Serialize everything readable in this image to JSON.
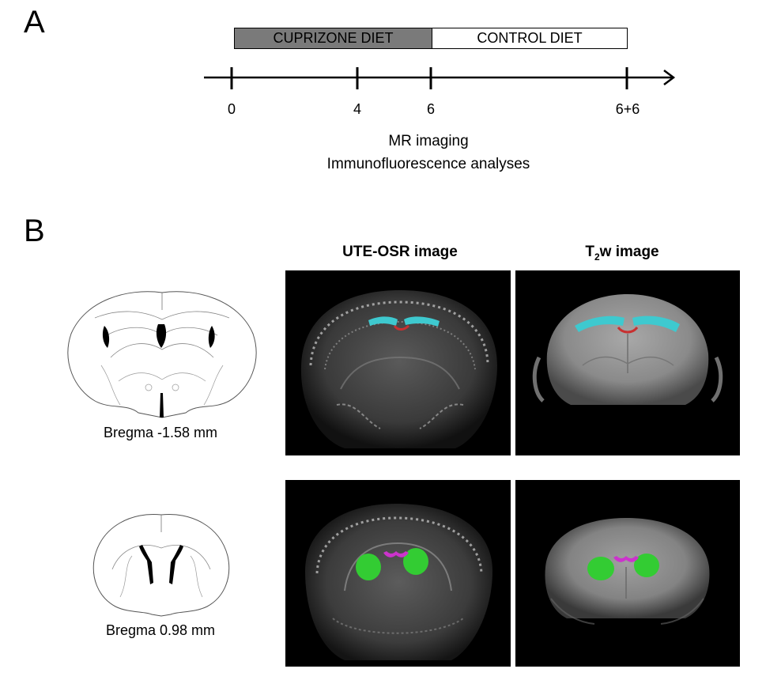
{
  "panel_a": {
    "letter": "A",
    "bars": [
      {
        "label": "CUPRIZONE DIET",
        "fill": "#7a7a7a"
      },
      {
        "label": "CONTROL DIET",
        "fill": "#ffffff"
      }
    ],
    "ticks": [
      "0",
      "4",
      "6",
      "6+6"
    ],
    "annotation_line1": "MR imaging",
    "annotation_line2": "Immunofluorescence analyses"
  },
  "panel_b": {
    "letter": "B",
    "col1_title": "UTE-OSR image",
    "col2_title_main": "T",
    "col2_title_sub": "2",
    "col2_title_rest": "w image",
    "rows": [
      {
        "caption": "Bregma -1.58 mm"
      },
      {
        "caption": "Bregma 0.98 mm"
      }
    ]
  },
  "colors": {
    "roi_corpus_callosum_lateral": "#3ec9cf",
    "roi_corpus_callosum_medial": "#c83030",
    "roi_striatum": "#33cc33",
    "roi_anterior_commissure": "#cc33cc"
  }
}
